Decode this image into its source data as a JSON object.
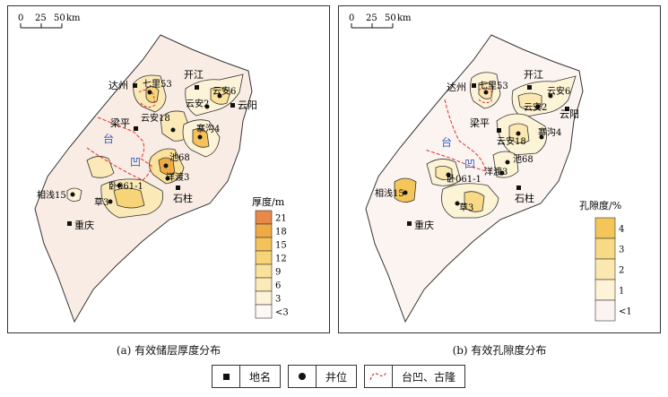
{
  "scale_bar": {
    "ticks": [
      "0",
      "25",
      "50"
    ],
    "unit": "km"
  },
  "places": {
    "dazhou": "达州",
    "kaijiang": "开江",
    "yunyang": "云阳",
    "liangping": "梁平",
    "shizhu": "石柱",
    "chongqing": "重庆",
    "tai": "台",
    "ao": "凹"
  },
  "wells": {
    "qili53": "七里53",
    "yun_an2": "云安2",
    "yun_an6": "云安6",
    "yun_an18": "云安18",
    "saiwan4": "寨沟4",
    "chi68": "池68",
    "yangdu3": "洋渡3",
    "wo061_1": "卧061-1",
    "cao3": "草3",
    "xiangqian15": "相浅15"
  },
  "panel_a": {
    "caption": "(a) 有效储层厚度分布",
    "legend": {
      "title": "厚度/m",
      "labels": [
        "21",
        "18",
        "15",
        "12",
        "9",
        "6",
        "3",
        "<3"
      ],
      "colors": [
        "#e8894a",
        "#f0aa45",
        "#f4c15a",
        "#f6d477",
        "#f9e29a",
        "#fbeab8",
        "#fdf3d8",
        "#fdf8f3"
      ]
    }
  },
  "panel_b": {
    "caption": "(b) 有效孔隙度分布",
    "legend": {
      "title": "孔隙度/%",
      "labels": [
        "4",
        "3",
        "2",
        "1",
        "<1"
      ],
      "colors": [
        "#f4c65a",
        "#f8da86",
        "#fbe8b0",
        "#fdf3d6",
        "#fbf4f1"
      ]
    }
  },
  "legend_bar": {
    "place": "地名",
    "well": "井位",
    "paleo": "台凹、古隆"
  }
}
